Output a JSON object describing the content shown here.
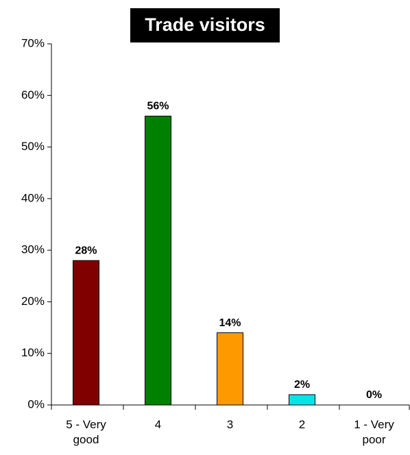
{
  "chart_data": {
    "type": "bar",
    "title": "Trade visitors",
    "categories": [
      "5 - Very good",
      "4",
      "3",
      "2",
      "1 - Very poor"
    ],
    "values": [
      28,
      56,
      14,
      2,
      0
    ],
    "value_labels": [
      "28%",
      "56%",
      "14%",
      "2%",
      "0%"
    ],
    "colors": [
      "#800000",
      "#008000",
      "#ff9900",
      "#00e5e5",
      "#808080"
    ],
    "ylim": [
      0,
      70
    ],
    "yticks": [
      {
        "value": 0,
        "label": "0%"
      },
      {
        "value": 10,
        "label": "10%"
      },
      {
        "value": 20,
        "label": "20%"
      },
      {
        "value": 30,
        "label": "30%"
      },
      {
        "value": 40,
        "label": "40%"
      },
      {
        "value": 50,
        "label": "50%"
      },
      {
        "value": 60,
        "label": "60%"
      },
      {
        "value": 70,
        "label": "70%"
      }
    ]
  }
}
